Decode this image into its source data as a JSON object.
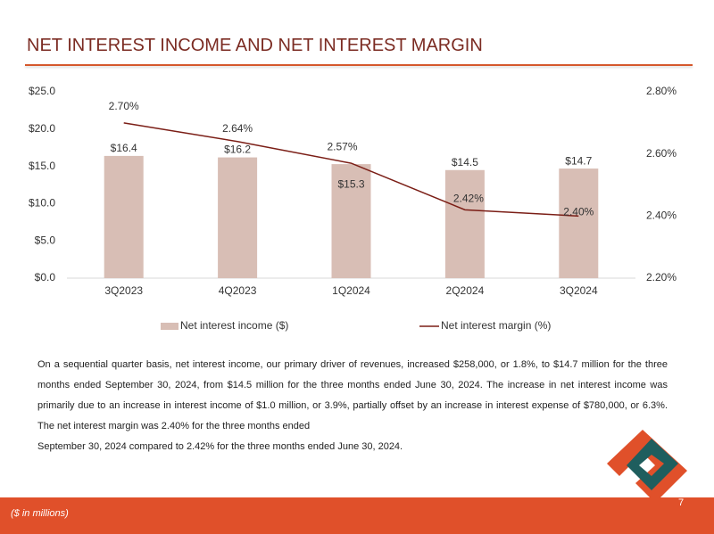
{
  "chart_data": {
    "type": "bar",
    "title": "NET INTEREST INCOME AND NET INTEREST MARGIN",
    "categories": [
      "3Q2023",
      "4Q2023",
      "1Q2024",
      "2Q2024",
      "3Q2024"
    ],
    "series": [
      {
        "name": "Net interest income ($)",
        "type": "bar",
        "color": "#d8beb5",
        "values": [
          16.4,
          16.2,
          15.3,
          14.5,
          14.7
        ],
        "value_labels": [
          "$16.4",
          "$16.2",
          "$15.3",
          "$14.5",
          "$14.7"
        ]
      },
      {
        "name": "Net interest margin (%)",
        "type": "line",
        "axis": "y2",
        "color": "#7b1e16",
        "values": [
          2.7,
          2.64,
          2.57,
          2.42,
          2.4
        ],
        "value_labels": [
          "2.70%",
          "2.64%",
          "2.57%",
          "2.42%",
          "2.40%"
        ]
      }
    ],
    "ylim": [
      0,
      25
    ],
    "yticks": [
      {
        "value": 0,
        "label": "$0.0"
      },
      {
        "value": 5,
        "label": "$5.0"
      },
      {
        "value": 10,
        "label": "$10.0"
      },
      {
        "value": 15,
        "label": "$15.0"
      },
      {
        "value": 20,
        "label": "$20.0"
      },
      {
        "value": 25,
        "label": "$25.0"
      }
    ],
    "y2lim": [
      2.2,
      2.8
    ],
    "y2ticks": [
      {
        "value": 2.2,
        "label": "2.20%"
      },
      {
        "value": 2.4,
        "label": "2.40%"
      },
      {
        "value": 2.6,
        "label": "2.60%"
      },
      {
        "value": 2.8,
        "label": "2.80%"
      }
    ],
    "grid": false,
    "legend": "bottom"
  },
  "body": {
    "paragraphs": [
      "On a sequential quarter basis, net interest income, our primary driver of revenues, increased $258,000, or 1.8%, to $14.7 million for the three months ended September 30, 2024, from $14.5 million for the three months ended June 30, 2024. The increase in net interest income was primarily due to an increase in interest income of $1.0 million, or 3.9%, partially offset by an increase in interest expense of $780,000, or 6.3%. The net interest margin was 2.40% for the three months ended",
      "September 30, 2024 compared to 2.42% for the three months ended June 30, 2024."
    ]
  },
  "footer": {
    "note": "($ in millions)",
    "page": "7"
  }
}
